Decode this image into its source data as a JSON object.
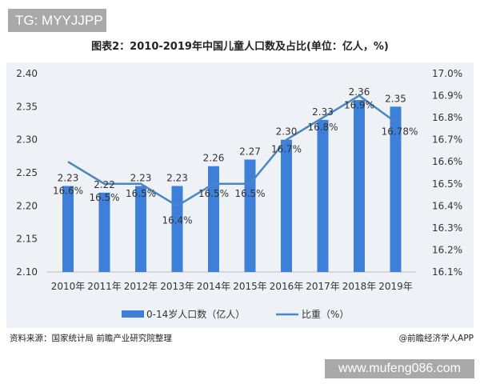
{
  "watermark_top": "TG: MYYJJPP",
  "watermark_bottom": "www.mufeng086.com",
  "source": "资料来源：国家统计局 前瞻产业研究院整理",
  "credit": "@前瞻经济学人APP",
  "chart_data": {
    "type": "bar+line",
    "title": "图表2：2010-2019年中国儿童人口数及占比(单位：亿人，%)",
    "categories": [
      "2010年",
      "2011年",
      "2012年",
      "2013年",
      "2014年",
      "2015年",
      "2016年",
      "2017年",
      "2018年",
      "2019年"
    ],
    "series": [
      {
        "name": "0-14岁人口数（亿人）",
        "type": "bar",
        "axis": "left",
        "color": "#3d7fd9",
        "values": [
          2.23,
          2.22,
          2.23,
          2.23,
          2.26,
          2.27,
          2.3,
          2.33,
          2.36,
          2.35
        ],
        "labels": [
          "2.23",
          "2.22",
          "2.23",
          "2.23",
          "2.26",
          "2.27",
          "2.30",
          "2.33",
          "2.36",
          "2.35"
        ]
      },
      {
        "name": "比重（%）",
        "type": "line",
        "axis": "right",
        "color": "#4a86c5",
        "values": [
          16.6,
          16.5,
          16.5,
          16.4,
          16.5,
          16.5,
          16.7,
          16.8,
          16.9,
          16.78
        ],
        "labels": [
          "16.6%",
          "16.5%",
          "16.5%",
          "16.4%",
          "16.5%",
          "16.5%",
          "16.7%",
          "16.8%",
          "16.9%",
          "16.78%"
        ]
      }
    ],
    "y_left": {
      "range": [
        2.1,
        2.4
      ],
      "ticks": [
        "2.10",
        "2.15",
        "2.20",
        "2.25",
        "2.30",
        "2.35",
        "2.40"
      ]
    },
    "y_right": {
      "range": [
        16.1,
        17.0
      ],
      "ticks": [
        "16.1%",
        "16.2%",
        "16.3%",
        "16.4%",
        "16.5%",
        "16.6%",
        "16.7%",
        "16.8%",
        "16.9%",
        "17.0%"
      ]
    },
    "grid": false,
    "legend": "bottom"
  }
}
